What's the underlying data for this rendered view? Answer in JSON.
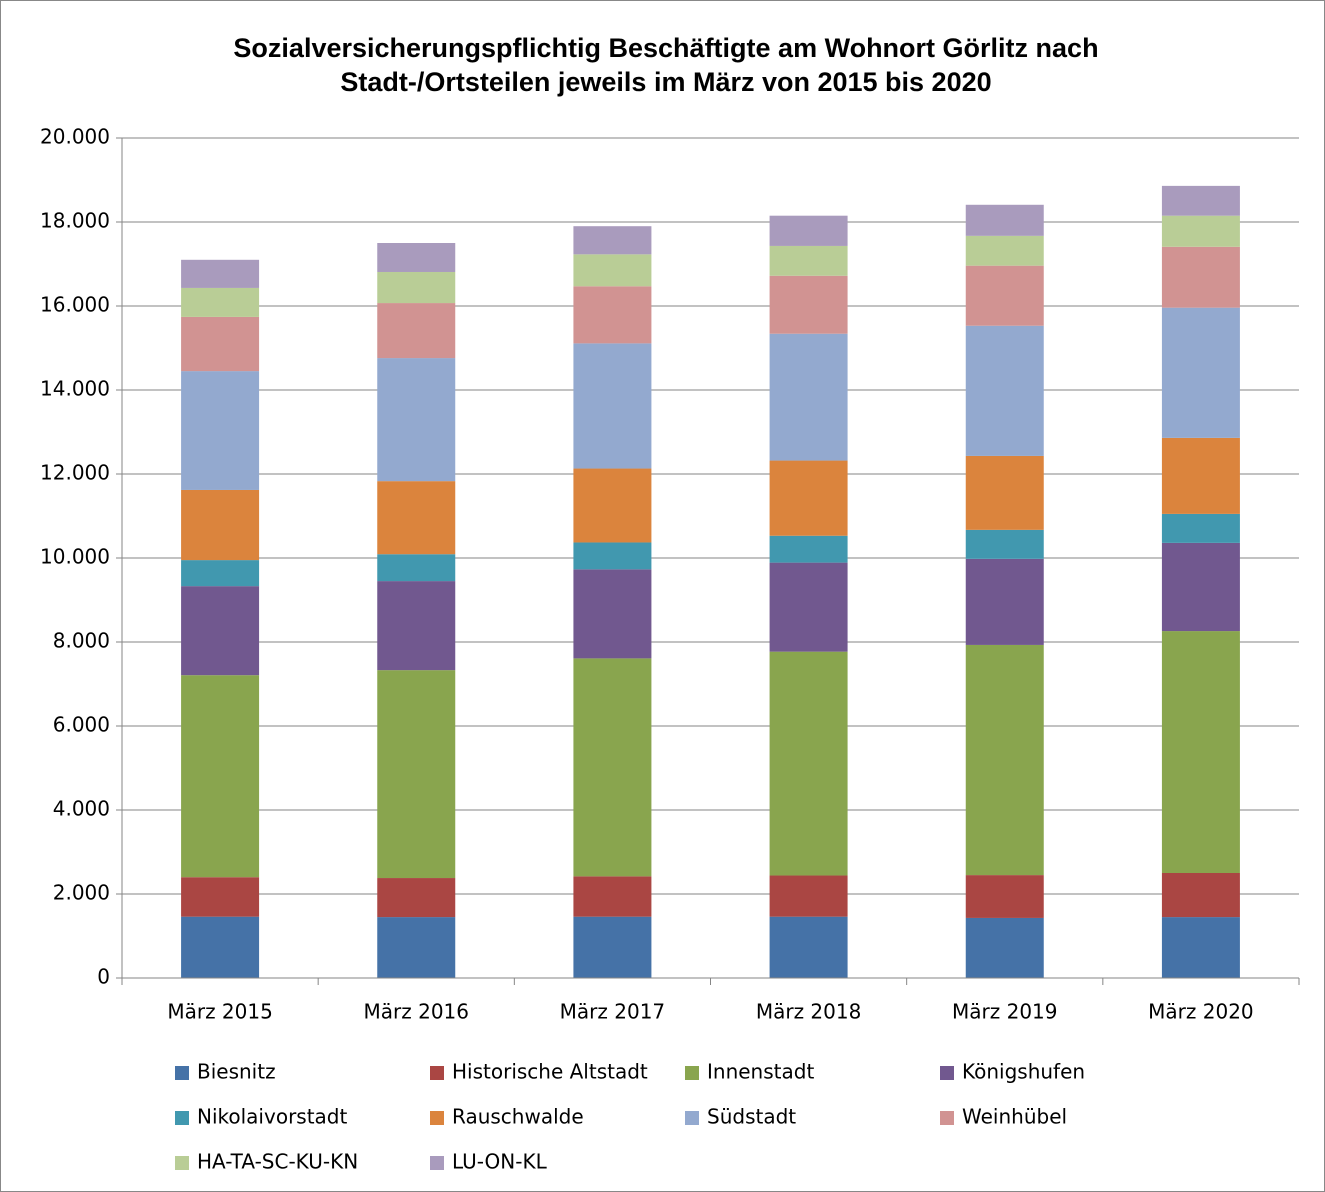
{
  "chart_data": {
    "type": "stacked_bar",
    "title": [
      "Sozialversicherungspflichtig Beschäftigte am Wohnort Görlitz nach",
      "Stadt-/Ortsteilen jeweils im März von 2015 bis 2020"
    ],
    "categories": [
      "März 2015",
      "März 2016",
      "März 2017",
      "März 2018",
      "März 2019",
      "März 2020"
    ],
    "series": [
      {
        "name": "Biesnitz",
        "color": "#4572a7",
        "values": [
          1460,
          1450,
          1460,
          1460,
          1430,
          1450
        ]
      },
      {
        "name": "Historische Altstadt",
        "color": "#aa4643",
        "values": [
          940,
          930,
          960,
          980,
          1020,
          1050
        ]
      },
      {
        "name": "Innenstadt",
        "color": "#89a54e",
        "values": [
          4810,
          4950,
          5190,
          5330,
          5480,
          5760
        ]
      },
      {
        "name": "Königshufen",
        "color": "#71588f",
        "values": [
          2120,
          2120,
          2120,
          2120,
          2050,
          2100
        ]
      },
      {
        "name": "Nikolaivorstadt",
        "color": "#4198af",
        "values": [
          620,
          640,
          640,
          640,
          690,
          690
        ]
      },
      {
        "name": "Rauschwalde",
        "color": "#db843d",
        "values": [
          1670,
          1740,
          1760,
          1790,
          1760,
          1810
        ]
      },
      {
        "name": "Südstadt",
        "color": "#93a9cf",
        "values": [
          2830,
          2930,
          2980,
          3020,
          3100,
          3100
        ]
      },
      {
        "name": "Weinhübel",
        "color": "#d19392",
        "values": [
          1290,
          1310,
          1360,
          1380,
          1430,
          1450
        ]
      },
      {
        "name": "HA-TA-SC-KU-KN",
        "color": "#b9cd96",
        "values": [
          690,
          740,
          760,
          710,
          710,
          740
        ]
      },
      {
        "name": "LU-ON-KL",
        "color": "#a99bbd",
        "values": [
          670,
          690,
          670,
          720,
          740,
          710
        ]
      }
    ],
    "ylim": [
      0,
      20000
    ],
    "yticks": [
      0,
      {
        "value": 2000,
        "label": "2.000"
      },
      {
        "value": 4000,
        "label": "4.000"
      },
      {
        "value": 6000,
        "label": "6.000"
      },
      {
        "value": 8000,
        "label": "8.000"
      },
      {
        "value": 10000,
        "label": "10.000"
      },
      {
        "value": 12000,
        "label": "12.000"
      },
      {
        "value": 14000,
        "label": "14.000"
      },
      {
        "value": 16000,
        "label": "16.000"
      },
      {
        "value": 18000,
        "label": "18.000"
      },
      {
        "value": 20000,
        "label": "20.000"
      }
    ],
    "grid": true,
    "legend": "bottom"
  }
}
